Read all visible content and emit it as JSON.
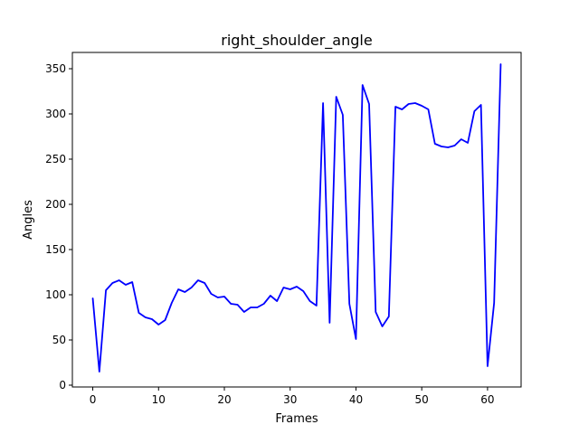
{
  "chart_data": {
    "type": "line",
    "title": "right_shoulder_angle",
    "xlabel": "Frames",
    "ylabel": "Angles",
    "xlim": [
      -3.1,
      65.1
    ],
    "ylim": [
      -2,
      368
    ],
    "xticks": [
      0,
      10,
      20,
      30,
      40,
      50,
      60
    ],
    "yticks": [
      0,
      50,
      100,
      150,
      200,
      250,
      300,
      350
    ],
    "grid": false,
    "series": [
      {
        "color": "#0000ff",
        "x": [
          0,
          1,
          2,
          3,
          4,
          5,
          6,
          7,
          8,
          9,
          10,
          11,
          12,
          13,
          14,
          15,
          16,
          17,
          18,
          19,
          20,
          21,
          22,
          23,
          24,
          25,
          26,
          27,
          28,
          29,
          30,
          31,
          32,
          33,
          34,
          35,
          36,
          37,
          38,
          39,
          40,
          41,
          42,
          43,
          44,
          45,
          46,
          47,
          48,
          49,
          50,
          51,
          52,
          53,
          54,
          55,
          56,
          57,
          58,
          59,
          60,
          61,
          62
        ],
        "values": [
          96,
          15,
          105,
          113,
          116,
          111,
          114,
          80,
          75,
          73,
          67,
          72,
          91,
          106,
          103,
          108,
          116,
          113,
          101,
          97,
          98,
          90,
          89,
          81,
          86,
          86,
          90,
          99,
          93,
          108,
          106,
          109,
          104,
          93,
          88,
          312,
          69,
          319,
          299,
          90,
          51,
          332,
          311,
          81,
          65,
          76,
          308,
          305,
          311,
          312,
          309,
          305,
          267,
          264,
          263,
          265,
          272,
          268,
          303,
          310,
          21,
          91,
          355
        ]
      }
    ]
  }
}
